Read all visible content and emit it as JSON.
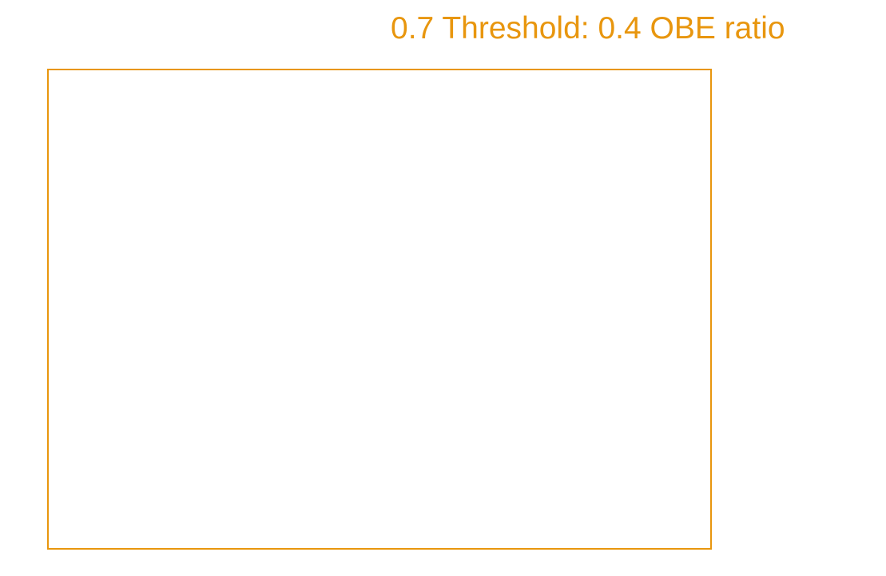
{
  "label": {
    "text": "0.7 Threshold: 0.4 OBE ratio"
  },
  "colors": {
    "accent": "#e8960e",
    "background": "#ffffff"
  }
}
